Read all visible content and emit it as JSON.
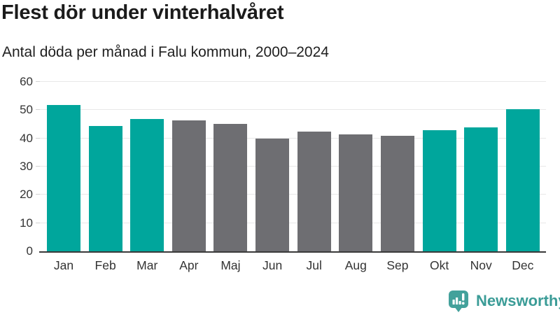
{
  "chart_data": {
    "type": "bar",
    "title": "Flest dör under vinterhalvåret",
    "subtitle": "Antal döda per månad i Falu kommun, 2000–2024",
    "categories": [
      "Jan",
      "Feb",
      "Mar",
      "Apr",
      "Maj",
      "Jun",
      "Jul",
      "Aug",
      "Sep",
      "Okt",
      "Nov",
      "Dec"
    ],
    "values": [
      51.8,
      44.5,
      46.8,
      46.3,
      45.1,
      39.9,
      42.3,
      41.4,
      41.0,
      43.0,
      43.9,
      50.3
    ],
    "bar_colors": [
      "#00a69c",
      "#00a69c",
      "#00a69c",
      "#6e6e72",
      "#6e6e72",
      "#6e6e72",
      "#6e6e72",
      "#6e6e72",
      "#6e6e72",
      "#00a69c",
      "#00a69c",
      "#00a69c"
    ],
    "xlabel": "",
    "ylabel": "",
    "ylim": [
      0,
      60
    ],
    "yticks": [
      0,
      10,
      20,
      30,
      40,
      50,
      60
    ],
    "grid": true,
    "legend": false,
    "highlight_color": "#00a69c",
    "base_color": "#6e6e72",
    "gridline_color": "#e8e8e8",
    "axis_color": "#3a3a3a",
    "tick_text_color": "#333333"
  },
  "branding": {
    "logo_text": "Newsworthy",
    "logo_color": "#3b9c97",
    "logo_icon": "bar-chart-speech-bubble-icon"
  }
}
